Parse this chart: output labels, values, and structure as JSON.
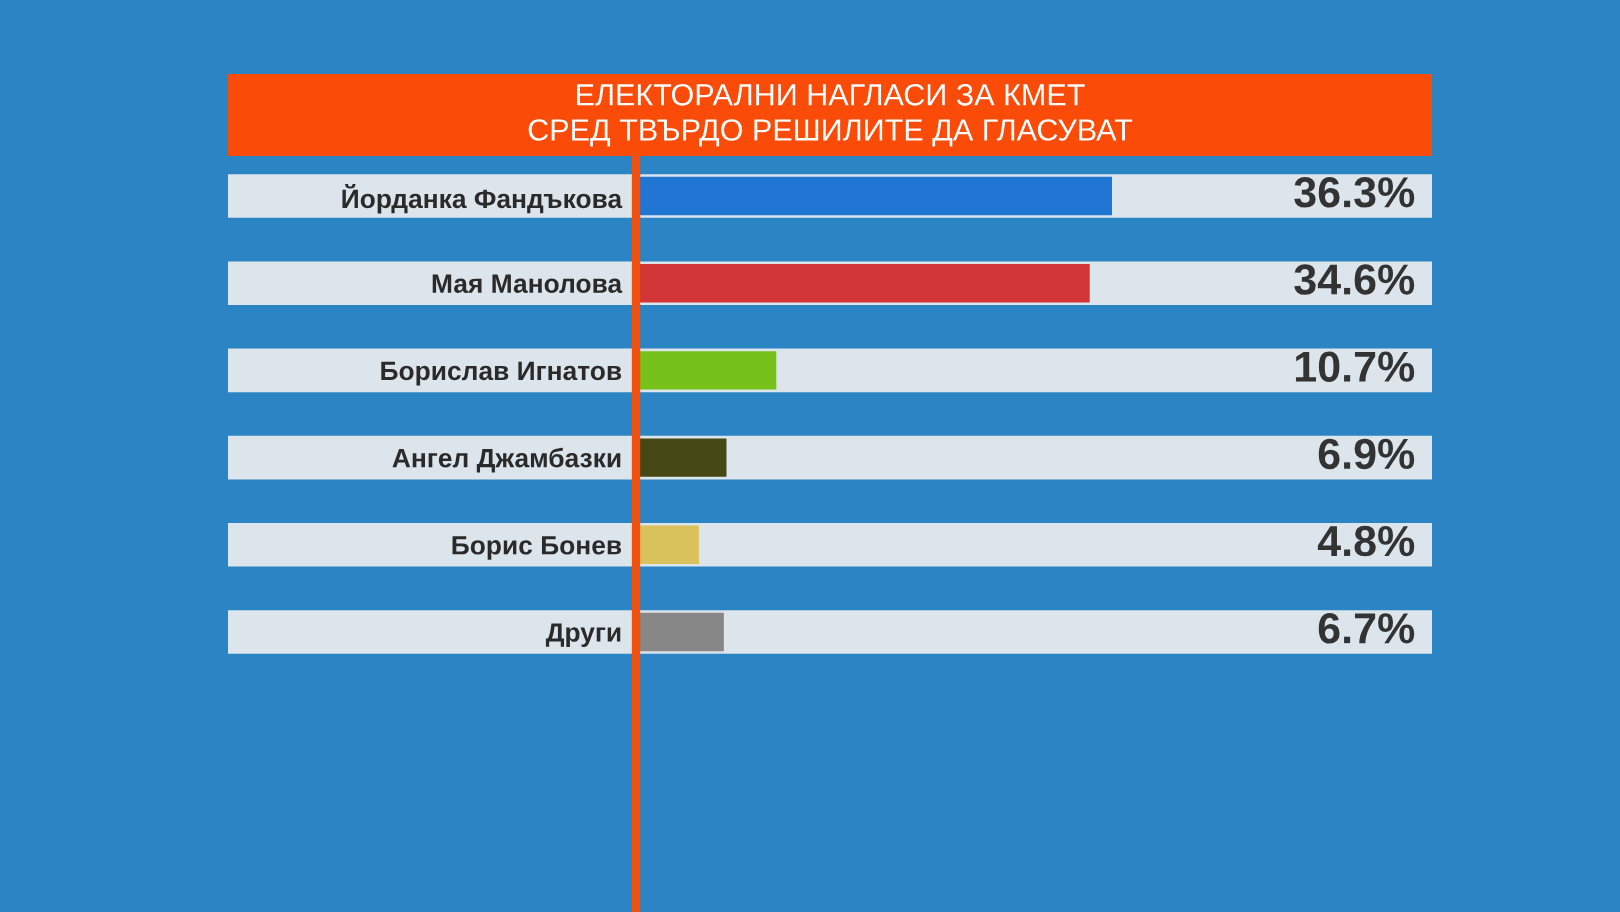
{
  "chart_data": {
    "type": "bar",
    "orientation": "horizontal",
    "title": "ЕЛЕКТОРАЛНИ НАГЛАСИ ЗА КМЕТ\nСРЕД ТВЪРДО РЕШИЛИТЕ ДА ГЛАСУВАТ",
    "categories": [
      "Йорданка Фандъкова",
      "Мая Манолова",
      "Борислав Игнатов",
      "Ангел Джамбазки",
      "Борис Бонев",
      "Други"
    ],
    "values": [
      36.3,
      34.6,
      10.7,
      6.9,
      4.8,
      6.7
    ],
    "colors": [
      "#2175d3",
      "#d13535",
      "#76c21b",
      "#464816",
      "#d9c25b",
      "#878787"
    ],
    "value_labels": [
      "36.3%",
      "34.6%",
      "10.7%",
      "6.9%",
      "4.8%",
      "6.7%"
    ],
    "tick_labels": "y"
  }
}
